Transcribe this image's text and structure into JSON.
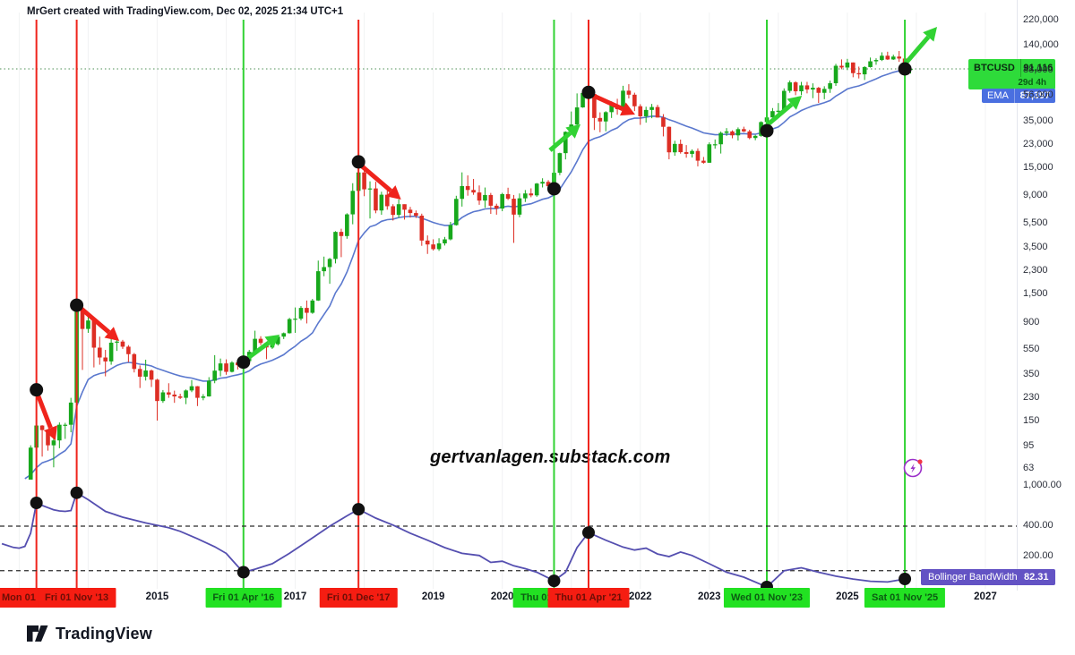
{
  "header": {
    "title": "MrGert created with TradingView.com, Dec 02, 2025 21:34 UTC+1"
  },
  "watermark": "gertvanlagen.substack.com",
  "logo": {
    "text": "TradingView"
  },
  "price_badges": {
    "symbol": "BTCUSD",
    "price": "91,116",
    "countdown": "29d 4h",
    "ema_label": "EMA",
    "ema_value": "87,397"
  },
  "indicator": {
    "label": "Bollinger BandWidth",
    "value": "82.31"
  },
  "colors": {
    "candle_up": "#17a81c",
    "candle_down": "#dd2e24",
    "vline_red": "#ef241c",
    "vline_green": "#31d233",
    "badge_red": "#f51d12",
    "badge_green": "#22e122",
    "ema_line": "#5a78ce",
    "bbw_line": "#554fb0",
    "dot": "#111111",
    "price_line": "#4c8f54",
    "btc_badge": "#2edb3a",
    "ema_badge": "#4a6fe0",
    "bbw_badge": "#6353c4"
  },
  "axes": {
    "price_labels": [
      220000,
      140000,
      88000,
      56000,
      35000,
      23000,
      15000,
      9000,
      5500,
      3500,
      2300,
      1500,
      900,
      550,
      350,
      230,
      150,
      95,
      63
    ],
    "bbw_labels": [
      {
        "v": 1000,
        "label": "1,000.00"
      },
      {
        "v": 400,
        "label": "400.00"
      },
      {
        "v": 200,
        "label": "200.00"
      }
    ],
    "years": [
      2015,
      2017,
      2019,
      2020,
      2022,
      2023,
      2025,
      2027
    ]
  },
  "chart_data": {
    "type": "candlestick",
    "symbol": "BTCUSD",
    "scale": "log",
    "interval": "1M",
    "start_month": "2013-02",
    "first_open": 21,
    "candles": [
      [
        34,
        20,
        33
      ],
      [
        97,
        33,
        93
      ],
      [
        266,
        50,
        139
      ],
      [
        140,
        79,
        128
      ],
      [
        130,
        88,
        97
      ],
      [
        112,
        65,
        106
      ],
      [
        147,
        92,
        141
      ],
      [
        146,
        109,
        141
      ],
      [
        230,
        123,
        211
      ],
      [
        1163,
        200,
        1130
      ],
      [
        1240,
        382,
        805
      ],
      [
        1015,
        750,
        939
      ],
      [
        960,
        400,
        573
      ],
      [
        700,
        420,
        479
      ],
      [
        550,
        340,
        446
      ],
      [
        680,
        420,
        627
      ],
      [
        680,
        540,
        640
      ],
      [
        660,
        560,
        583
      ],
      [
        600,
        440,
        509
      ],
      [
        520,
        365,
        389
      ],
      [
        415,
        275,
        338
      ],
      [
        460,
        315,
        378
      ],
      [
        385,
        280,
        320
      ],
      [
        325,
        152,
        217
      ],
      [
        265,
        210,
        254
      ],
      [
        300,
        230,
        244
      ],
      [
        262,
        210,
        236
      ],
      [
        248,
        225,
        230
      ],
      [
        268,
        205,
        263
      ],
      [
        318,
        255,
        284
      ],
      [
        285,
        198,
        230
      ],
      [
        246,
        220,
        236
      ],
      [
        335,
        235,
        314
      ],
      [
        500,
        300,
        377
      ],
      [
        470,
        340,
        430
      ],
      [
        463,
        350,
        369
      ],
      [
        448,
        365,
        437
      ],
      [
        440,
        385,
        416
      ],
      [
        468,
        410,
        448
      ],
      [
        550,
        440,
        531
      ],
      [
        780,
        520,
        673
      ],
      [
        705,
        600,
        624
      ],
      [
        630,
        465,
        575
      ],
      [
        629,
        560,
        610
      ],
      [
        720,
        595,
        700
      ],
      [
        755,
        670,
        745
      ],
      [
        985,
        740,
        963
      ],
      [
        1190,
        750,
        970
      ],
      [
        1220,
        940,
        1180
      ],
      [
        1350,
        890,
        1080
      ],
      [
        1390,
        1060,
        1350
      ],
      [
        2790,
        1340,
        2300
      ],
      [
        3000,
        2100,
        2480
      ],
      [
        2930,
        1830,
        2875
      ],
      [
        4765,
        2650,
        4703
      ],
      [
        4980,
        2970,
        4360
      ],
      [
        6600,
        4150,
        6468
      ],
      [
        11400,
        5400,
        9916
      ],
      [
        19870,
        9000,
        13860
      ],
      [
        17200,
        9000,
        10200
      ],
      [
        11790,
        6000,
        10360
      ],
      [
        11700,
        6600,
        6940
      ],
      [
        9760,
        6425,
        9245
      ],
      [
        9990,
        7040,
        7500
      ],
      [
        7780,
        5780,
        6404
      ],
      [
        8500,
        6070,
        7780
      ],
      [
        7760,
        5880,
        7037
      ],
      [
        7410,
        6100,
        6625
      ],
      [
        6940,
        6055,
        6317
      ],
      [
        6550,
        3650,
        4017
      ],
      [
        4410,
        3150,
        3743
      ],
      [
        4110,
        3350,
        3437
      ],
      [
        4190,
        3330,
        3816
      ],
      [
        4290,
        3670,
        4105
      ],
      [
        5640,
        4030,
        5320
      ],
      [
        9070,
        5270,
        8574
      ],
      [
        13880,
        7450,
        10818
      ],
      [
        13150,
        9080,
        10082
      ],
      [
        12320,
        9230,
        9630
      ],
      [
        10940,
        7700,
        8310
      ],
      [
        10540,
        7290,
        9199
      ],
      [
        9550,
        6520,
        7569
      ],
      [
        7850,
        6430,
        7193
      ],
      [
        9570,
        6850,
        9350
      ],
      [
        10500,
        8400,
        8599
      ],
      [
        9200,
        3850,
        6438
      ],
      [
        9460,
        6140,
        8658
      ],
      [
        10070,
        8100,
        9461
      ],
      [
        10380,
        8830,
        9137
      ],
      [
        11450,
        8900,
        11323
      ],
      [
        12470,
        10550,
        11680
      ],
      [
        12050,
        9825,
        10784
      ],
      [
        14100,
        10400,
        13781
      ],
      [
        19860,
        13200,
        19695
      ],
      [
        29300,
        17570,
        28990
      ],
      [
        41990,
        28130,
        33141
      ],
      [
        58350,
        32320,
        45240
      ],
      [
        61780,
        44950,
        58800
      ],
      [
        64850,
        46930,
        57750
      ],
      [
        59500,
        30000,
        37332
      ],
      [
        41330,
        28800,
        35040
      ],
      [
        42240,
        29300,
        41490
      ],
      [
        50500,
        37330,
        47130
      ],
      [
        52920,
        39600,
        43790
      ],
      [
        66980,
        43290,
        61310
      ],
      [
        69000,
        53260,
        57005
      ],
      [
        59100,
        42330,
        46210
      ],
      [
        47960,
        32950,
        38480
      ],
      [
        45820,
        34320,
        43190
      ],
      [
        48190,
        37160,
        45540
      ],
      [
        47440,
        37580,
        37640
      ],
      [
        40020,
        26700,
        31790
      ],
      [
        31960,
        17600,
        19985
      ],
      [
        24670,
        18780,
        23290
      ],
      [
        25200,
        19520,
        20050
      ],
      [
        22800,
        18120,
        19430
      ],
      [
        21080,
        18190,
        20490
      ],
      [
        21470,
        15480,
        17160
      ],
      [
        18370,
        16260,
        16540
      ],
      [
        23950,
        16490,
        23130
      ],
      [
        25250,
        21350,
        23140
      ],
      [
        29180,
        19550,
        28470
      ],
      [
        31050,
        26940,
        29230
      ],
      [
        29820,
        25800,
        27210
      ],
      [
        31430,
        24750,
        30470
      ],
      [
        31850,
        28850,
        29230
      ],
      [
        30100,
        25350,
        25930
      ],
      [
        27480,
        24900,
        26960
      ],
      [
        35150,
        26540,
        34650
      ],
      [
        38420,
        34100,
        37710
      ],
      [
        44700,
        37610,
        42270
      ],
      [
        48970,
        38500,
        42580
      ],
      [
        63930,
        41880,
        61130
      ],
      [
        73800,
        59000,
        71330
      ],
      [
        72800,
        56500,
        60640
      ],
      [
        71950,
        56550,
        67530
      ],
      [
        71990,
        58400,
        62670
      ],
      [
        70080,
        53500,
        64620
      ],
      [
        65600,
        49050,
        58970
      ],
      [
        66500,
        52550,
        63330
      ],
      [
        73620,
        58900,
        70210
      ],
      [
        99860,
        66840,
        96440
      ],
      [
        108300,
        90500,
        93430
      ],
      [
        109350,
        89160,
        102400
      ],
      [
        102500,
        78260,
        84350
      ],
      [
        95000,
        76600,
        82550
      ],
      [
        95770,
        74500,
        94200
      ],
      [
        112000,
        93300,
        104600
      ],
      [
        110530,
        98200,
        107100
      ],
      [
        123230,
        105100,
        115800
      ],
      [
        124500,
        107300,
        108200
      ],
      [
        118000,
        107250,
        114000
      ],
      [
        126200,
        103500,
        110000
      ],
      [
        111000,
        80500,
        91000
      ],
      [
        93100,
        83800,
        91116
      ]
    ],
    "ema": {
      "period": 20,
      "seed": 55,
      "current": 87397
    },
    "price_line": 91116,
    "bbw": {
      "name": "Bollinger BandWidth",
      "current": 82.31,
      "dashed_levels": [
        400,
        145
      ],
      "points": [
        [
          -3,
          268
        ],
        [
          -1,
          246
        ],
        [
          0,
          242
        ],
        [
          1,
          252
        ],
        [
          2,
          340
        ],
        [
          3,
          679
        ],
        [
          4,
          640
        ],
        [
          5,
          610
        ],
        [
          6,
          580
        ],
        [
          7,
          565
        ],
        [
          8,
          560
        ],
        [
          9,
          570
        ],
        [
          10,
          855
        ],
        [
          12,
          730
        ],
        [
          15,
          560
        ],
        [
          18,
          490
        ],
        [
          22,
          430
        ],
        [
          26,
          385
        ],
        [
          28,
          355
        ],
        [
          31,
          300
        ],
        [
          34,
          250
        ],
        [
          36,
          215
        ],
        [
          38,
          160
        ],
        [
          39,
          140
        ],
        [
          41,
          150
        ],
        [
          44,
          170
        ],
        [
          47,
          215
        ],
        [
          50,
          280
        ],
        [
          54,
          400
        ],
        [
          57,
          505
        ],
        [
          59,
          587
        ],
        [
          62,
          480
        ],
        [
          65,
          410
        ],
        [
          68,
          340
        ],
        [
          71,
          290
        ],
        [
          74,
          245
        ],
        [
          77,
          215
        ],
        [
          80,
          205
        ],
        [
          82,
          175
        ],
        [
          84,
          180
        ],
        [
          86,
          162
        ],
        [
          88,
          152
        ],
        [
          90,
          140
        ],
        [
          93,
          115
        ],
        [
          95,
          140
        ],
        [
          97,
          245
        ],
        [
          99,
          345
        ],
        [
          102,
          290
        ],
        [
          105,
          248
        ],
        [
          107,
          232
        ],
        [
          109,
          242
        ],
        [
          111,
          212
        ],
        [
          113,
          200
        ],
        [
          115,
          222
        ],
        [
          117,
          205
        ],
        [
          120,
          170
        ],
        [
          123,
          140
        ],
        [
          126,
          125
        ],
        [
          130,
          100
        ],
        [
          133,
          145
        ],
        [
          136,
          155
        ],
        [
          139,
          140
        ],
        [
          142,
          128
        ],
        [
          145,
          120
        ],
        [
          148,
          114
        ],
        [
          151,
          112
        ],
        [
          154,
          120
        ]
      ]
    },
    "event_lines": [
      {
        "label": "Mon 01 Apr '13",
        "month": "2013-04",
        "color": "red"
      },
      {
        "label": "Fri 01 Nov '13",
        "month": "2013-11",
        "color": "red"
      },
      {
        "label": "Fri 01 Apr '16",
        "month": "2016-04",
        "color": "green"
      },
      {
        "label": "Fri 01 Dec '17",
        "month": "2017-12",
        "color": "red"
      },
      {
        "label": "Thu 01 Oct '20",
        "month": "2020-10",
        "color": "green"
      },
      {
        "label": "Thu 01 Apr '21",
        "month": "2021-04",
        "color": "red"
      },
      {
        "label": "Wed 01 Nov '23",
        "month": "2023-11",
        "color": "green"
      },
      {
        "label": "Sat 01 Nov '25",
        "month": "2025-11",
        "color": "green"
      }
    ],
    "dots_price": [
      {
        "month": "2013-04",
        "price": 266
      },
      {
        "month": "2013-11",
        "price": 1240
      },
      {
        "month": "2016-04",
        "price": 440
      },
      {
        "month": "2017-12",
        "price": 16800
      },
      {
        "month": "2020-10",
        "price": 10300
      },
      {
        "month": "2021-04",
        "price": 59500
      },
      {
        "month": "2023-11",
        "price": 29600
      },
      {
        "month": "2025-11",
        "price": 91116
      }
    ],
    "dots_bbw": [
      {
        "month": "2013-04",
        "value": 679
      },
      {
        "month": "2013-11",
        "value": 855
      },
      {
        "month": "2016-04",
        "value": 140
      },
      {
        "month": "2017-12",
        "value": 587
      },
      {
        "month": "2020-10",
        "value": 115
      },
      {
        "month": "2021-04",
        "value": 345
      },
      {
        "month": "2023-11",
        "value": 100
      },
      {
        "month": "2025-11",
        "value": 120
      }
    ],
    "arrows": [
      {
        "from": {
          "m": 3.0,
          "p": 260
        },
        "to": {
          "m": 6.3,
          "p": 106
        },
        "color": "red"
      },
      {
        "from": {
          "m": 10.1,
          "p": 1240
        },
        "to": {
          "m": 17.4,
          "p": 647
        },
        "color": "red"
      },
      {
        "from": {
          "m": 39.8,
          "p": 475
        },
        "to": {
          "m": 45.3,
          "p": 726
        },
        "color": "green"
      },
      {
        "from": {
          "m": 59.1,
          "p": 16220
        },
        "to": {
          "m": 66.4,
          "p": 8470
        },
        "color": "red"
      },
      {
        "from": {
          "m": 92.3,
          "p": 20750
        },
        "to": {
          "m": 97.6,
          "p": 33270
        },
        "color": "green"
      },
      {
        "from": {
          "m": 99.2,
          "p": 57800
        },
        "to": {
          "m": 107.1,
          "p": 39720
        },
        "color": "red"
      },
      {
        "from": {
          "m": 130.0,
          "p": 32660
        },
        "to": {
          "m": 136.1,
          "p": 55930
        },
        "color": "green"
      },
      {
        "from": {
          "m": 153.7,
          "p": 95700
        },
        "to": {
          "m": 159.6,
          "p": 195900
        },
        "color": "green"
      }
    ]
  }
}
